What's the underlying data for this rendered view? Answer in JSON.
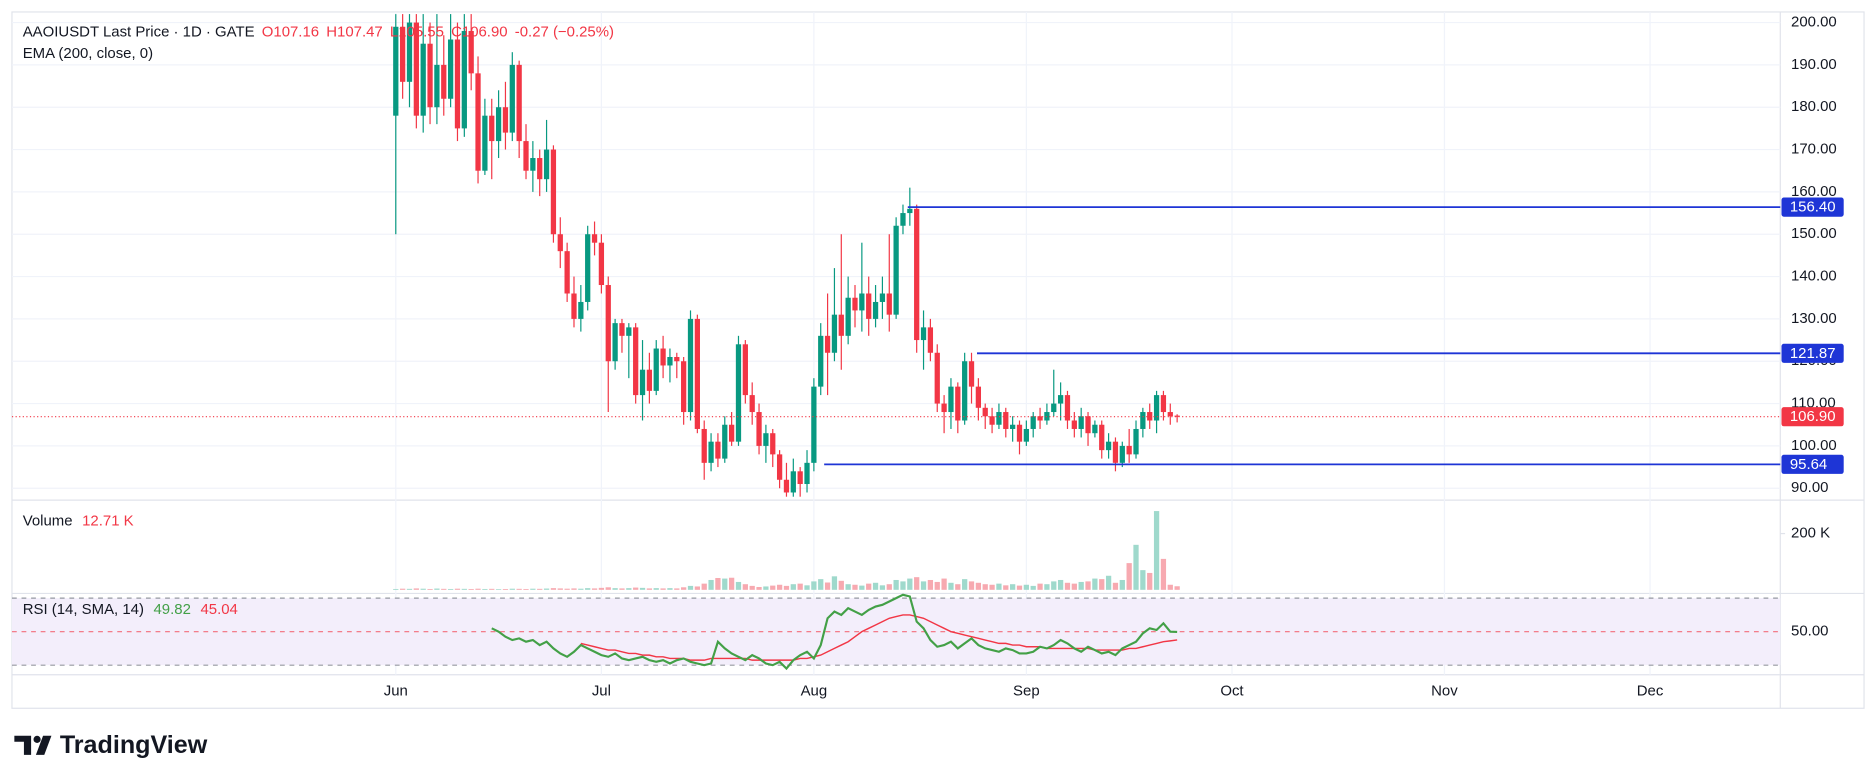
{
  "chart_data": {
    "type": "candlestick",
    "legend": {
      "symbol": "AAOIUSDT Last Price · 1D · GATE",
      "open": "O107.16",
      "high": "H107.47",
      "low": "L105.55",
      "close": "C106.90",
      "change": "-0.27 (−0.25%)",
      "ema": "EMA (200, close, 0)"
    },
    "ohlc": [
      [
        178,
        202,
        150,
        199
      ],
      [
        199,
        202,
        182,
        186
      ],
      [
        186,
        202,
        180,
        200
      ],
      [
        200,
        202,
        175,
        178
      ],
      [
        178,
        202,
        174,
        195
      ],
      [
        195,
        200,
        176,
        180
      ],
      [
        180,
        202,
        176,
        190
      ],
      [
        190,
        197,
        178,
        182
      ],
      [
        182,
        202,
        180,
        196
      ],
      [
        196,
        200,
        172,
        175
      ],
      [
        175,
        202,
        173,
        198
      ],
      [
        198,
        202,
        184,
        188
      ],
      [
        188,
        192,
        162,
        165
      ],
      [
        165,
        182,
        164,
        178
      ],
      [
        178,
        182,
        163,
        172
      ],
      [
        172,
        184,
        168,
        180
      ],
      [
        180,
        186,
        170,
        174
      ],
      [
        174,
        193,
        172,
        190
      ],
      [
        190,
        191,
        168,
        172
      ],
      [
        172,
        176,
        163,
        165
      ],
      [
        165,
        172,
        160,
        168
      ],
      [
        168,
        170,
        159,
        163
      ],
      [
        163,
        177,
        160,
        170
      ],
      [
        170,
        171,
        148,
        150
      ],
      [
        150,
        154,
        142,
        146
      ],
      [
        146,
        148,
        134,
        136
      ],
      [
        136,
        140,
        128,
        130
      ],
      [
        130,
        138,
        127,
        134
      ],
      [
        134,
        152,
        132,
        150
      ],
      [
        150,
        153,
        145,
        148
      ],
      [
        148,
        150,
        136,
        138
      ],
      [
        138,
        140,
        108,
        120
      ],
      [
        120,
        130,
        118,
        129
      ],
      [
        129,
        130,
        122,
        126
      ],
      [
        126,
        129,
        116,
        128
      ],
      [
        128,
        129,
        110,
        112
      ],
      [
        112,
        125,
        106,
        118
      ],
      [
        118,
        122,
        110,
        113
      ],
      [
        113,
        125,
        112,
        123
      ],
      [
        123,
        126,
        116,
        119
      ],
      [
        119,
        123,
        115,
        121
      ],
      [
        121,
        122,
        116,
        120
      ],
      [
        120,
        121,
        105,
        108
      ],
      [
        108,
        132,
        106,
        130
      ],
      [
        130,
        131,
        103,
        104
      ],
      [
        104,
        106,
        92,
        96
      ],
      [
        96,
        103,
        94,
        101
      ],
      [
        101,
        103,
        95,
        97
      ],
      [
        97,
        107,
        96,
        105
      ],
      [
        105,
        108,
        100,
        101
      ],
      [
        101,
        126,
        100,
        124
      ],
      [
        124,
        125,
        110,
        112
      ],
      [
        112,
        115,
        105,
        108
      ],
      [
        108,
        110,
        98,
        100
      ],
      [
        100,
        105,
        96,
        103
      ],
      [
        103,
        104,
        95,
        98
      ],
      [
        98,
        99,
        90,
        92
      ],
      [
        92,
        96,
        88,
        89
      ],
      [
        89,
        97,
        88,
        94
      ],
      [
        94,
        95,
        88,
        91
      ],
      [
        91,
        99,
        89,
        96
      ],
      [
        96,
        116,
        94,
        114
      ],
      [
        114,
        129,
        112,
        126
      ],
      [
        126,
        136,
        112,
        122
      ],
      [
        122,
        142,
        120,
        131
      ],
      [
        131,
        150,
        118,
        126
      ],
      [
        126,
        140,
        124,
        135
      ],
      [
        135,
        138,
        128,
        132
      ],
      [
        132,
        148,
        127,
        136
      ],
      [
        136,
        140,
        126,
        130
      ],
      [
        130,
        138,
        128,
        134
      ],
      [
        134,
        140,
        130,
        136
      ],
      [
        136,
        150,
        127,
        131
      ],
      [
        131,
        154,
        130,
        152
      ],
      [
        152,
        157,
        150,
        155
      ],
      [
        155,
        161,
        152,
        156
      ],
      [
        156,
        157,
        122,
        125
      ],
      [
        125,
        132,
        118,
        128
      ],
      [
        128,
        130,
        120,
        122
      ],
      [
        122,
        124,
        108,
        110
      ],
      [
        110,
        112,
        103,
        108
      ],
      [
        108,
        116,
        104,
        114
      ],
      [
        114,
        115,
        103,
        106
      ],
      [
        106,
        122,
        105,
        120
      ],
      [
        120,
        122,
        110,
        114
      ],
      [
        114,
        116,
        106,
        109
      ],
      [
        109,
        110,
        104,
        107
      ],
      [
        107,
        109,
        103,
        105
      ],
      [
        105,
        110,
        104,
        108
      ],
      [
        108,
        109,
        102,
        104
      ],
      [
        104,
        107,
        101,
        105
      ],
      [
        105,
        106,
        98,
        101
      ],
      [
        101,
        106,
        100,
        104
      ],
      [
        104,
        108,
        102,
        107
      ],
      [
        107,
        109,
        104,
        106
      ],
      [
        106,
        110,
        105,
        108
      ],
      [
        108,
        118,
        107,
        110
      ],
      [
        110,
        115,
        106,
        112
      ],
      [
        112,
        113,
        104,
        106
      ],
      [
        106,
        108,
        102,
        104
      ],
      [
        104,
        109,
        102,
        107
      ],
      [
        107,
        108,
        100,
        103
      ],
      [
        103,
        106,
        102,
        105
      ],
      [
        105,
        106,
        97,
        99
      ],
      [
        99,
        103,
        97,
        101
      ],
      [
        101,
        102,
        94,
        96
      ],
      [
        96,
        101,
        95,
        100
      ],
      [
        100,
        104,
        96,
        98
      ],
      [
        98,
        106,
        97,
        104
      ],
      [
        104,
        109,
        102,
        108
      ],
      [
        108,
        110,
        104,
        106
      ],
      [
        106,
        113,
        103,
        112
      ],
      [
        112,
        113,
        106,
        108
      ],
      [
        108,
        110,
        105,
        107
      ],
      [
        107.16,
        107.47,
        105.55,
        106.9
      ]
    ],
    "up_color": "#089981",
    "down_color": "#f23645",
    "xlim": [
      -56,
      202
    ],
    "xticks": [
      {
        "value": 0,
        "label": "Jun"
      },
      {
        "value": 30,
        "label": "Jul"
      },
      {
        "value": 61,
        "label": "Aug"
      },
      {
        "value": 92,
        "label": "Sep"
      },
      {
        "value": 122,
        "label": "Oct"
      },
      {
        "value": 153,
        "label": "Nov"
      },
      {
        "value": 183,
        "label": "Dec"
      }
    ],
    "ylim": [
      87.2,
      202.5
    ],
    "yticks": [
      {
        "value": 90,
        "label": "90.00"
      },
      {
        "value": 100,
        "label": "100.00"
      },
      {
        "value": 110,
        "label": "110.00"
      },
      {
        "value": 120,
        "label": "120.00"
      },
      {
        "value": 130,
        "label": "130.00"
      },
      {
        "value": 140,
        "label": "140.00"
      },
      {
        "value": 150,
        "label": "150.00"
      },
      {
        "value": 160,
        "label": "160.00"
      },
      {
        "value": 170,
        "label": "170.00"
      },
      {
        "value": 180,
        "label": "180.00"
      },
      {
        "value": 190,
        "label": "190.00"
      },
      {
        "value": 200,
        "label": "200.00"
      }
    ],
    "grid": true,
    "levels": [
      {
        "value": 156.4,
        "label": "156.40",
        "start": 74.7
      },
      {
        "value": 121.87,
        "label": "121.87",
        "start": 84.8
      },
      {
        "value": 95.64,
        "label": "95.64",
        "start": 62.5
      }
    ],
    "level_color": "#1e35d6",
    "last_price": {
      "value": 106.9,
      "label": "106.90"
    },
    "volume": {
      "label": "Volume",
      "last": "12.71 K",
      "values": [
        3000,
        4000,
        3500,
        5000,
        4000,
        3000,
        4500,
        3500,
        3000,
        4000,
        3500,
        3000,
        4000,
        3000,
        3500,
        2500,
        3000,
        4000,
        3500,
        3000,
        4000,
        3500,
        4500,
        6000,
        5000,
        4000,
        5000,
        4000,
        6000,
        5000,
        7000,
        9000,
        6000,
        5000,
        6000,
        8000,
        7000,
        5000,
        6000,
        5000,
        6000,
        5000,
        9000,
        14000,
        12000,
        22000,
        35000,
        42000,
        40000,
        43000,
        28000,
        20000,
        14000,
        10000,
        12000,
        15000,
        18000,
        14000,
        20000,
        22000,
        16000,
        30000,
        38000,
        26000,
        48000,
        32000,
        20000,
        18000,
        15000,
        22000,
        25000,
        16000,
        20000,
        35000,
        30000,
        40000,
        45000,
        30000,
        35000,
        28000,
        40000,
        25000,
        20000,
        38000,
        30000,
        25000,
        20000,
        18000,
        22000,
        16000,
        20000,
        15000,
        18000,
        14000,
        22000,
        20000,
        30000,
        35000,
        25000,
        22000,
        28000,
        30000,
        40000,
        38000,
        50000,
        25000,
        35000,
        95000,
        160000,
        70000,
        60000,
        280000,
        110000,
        18000,
        12710
      ],
      "up_color": "#9fd9cc",
      "down_color": "#f7a9b0",
      "ylim": [
        0,
        319000
      ],
      "yticks": [
        {
          "value": 200000,
          "label": "200 K"
        }
      ]
    },
    "rsi": {
      "label": "RSI (14, SMA, 14)",
      "last": "49.82",
      "sma_last": "45.04",
      "values": [
        null,
        null,
        null,
        null,
        null,
        null,
        null,
        null,
        null,
        null,
        null,
        null,
        null,
        null,
        52,
        50,
        47,
        45,
        46,
        44,
        45,
        42,
        44,
        40,
        37,
        35,
        38,
        42,
        40,
        38,
        36,
        35,
        37,
        34,
        33,
        34,
        35,
        33,
        32,
        33,
        31,
        33,
        34,
        32,
        31,
        30,
        31,
        44,
        40,
        37,
        35,
        33,
        36,
        34,
        31,
        30,
        32,
        28,
        33,
        36,
        38,
        34,
        42,
        58,
        62,
        60,
        64,
        62,
        60,
        63,
        65,
        66,
        68,
        70,
        72,
        71,
        56,
        52,
        45,
        41,
        42,
        44,
        40,
        43,
        46,
        42,
        40,
        39,
        38,
        40,
        39,
        37,
        37,
        38,
        41,
        40,
        42,
        45,
        43,
        40,
        38,
        41,
        39,
        37,
        38,
        36,
        40,
        42,
        44,
        49,
        52,
        51,
        55,
        50,
        49.82
      ],
      "sma": [
        null,
        null,
        null,
        null,
        null,
        null,
        null,
        null,
        null,
        null,
        null,
        null,
        null,
        null,
        null,
        null,
        null,
        null,
        null,
        null,
        null,
        null,
        null,
        null,
        null,
        null,
        null,
        43,
        42,
        41,
        40,
        39,
        39,
        38,
        37,
        37,
        36,
        36,
        35,
        35,
        34,
        34,
        34,
        33,
        33,
        33,
        34,
        34,
        34,
        34,
        34,
        34,
        33,
        33,
        33,
        33,
        33,
        33,
        33,
        34,
        34,
        35,
        36,
        38,
        40,
        42,
        44,
        47,
        50,
        52,
        54,
        56,
        58,
        59,
        60,
        60,
        59,
        58,
        56,
        54,
        52,
        50,
        49,
        48,
        47,
        46,
        45,
        44,
        43,
        43,
        42,
        42,
        41,
        41,
        41,
        40,
        40,
        40,
        40,
        40,
        40,
        40,
        39,
        39,
        39,
        39,
        39,
        40,
        40,
        41,
        42,
        43,
        44,
        44.5,
        45.04
      ],
      "color": "#43a047",
      "sma_color": "#f23645",
      "band_color": "#f3eefb",
      "ylim": [
        25.7,
        71.4
      ],
      "yticks": [
        {
          "value": 50,
          "label": "50.00"
        }
      ],
      "bands": [
        70,
        30
      ]
    },
    "brand": "TradingView"
  }
}
